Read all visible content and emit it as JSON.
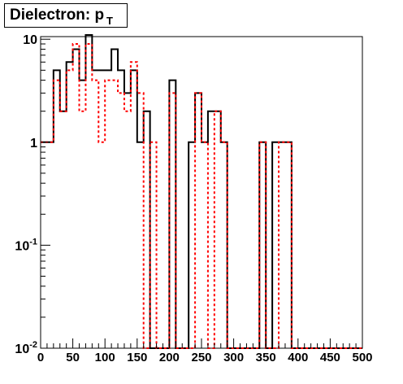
{
  "chart_data": {
    "type": "step-histogram",
    "title": "Dielectron: p",
    "title_subscript": "T",
    "x_ticks": [
      "0",
      "50",
      "100",
      "150",
      "200",
      "250",
      "300",
      "350",
      "400",
      "450",
      "500"
    ],
    "y_ticks": [
      {
        "base": "10",
        "exp": "-2",
        "value": 0.01
      },
      {
        "base": "10",
        "exp": "-1",
        "value": 0.1
      },
      {
        "base": "1",
        "exp": "",
        "value": 1
      },
      {
        "base": "10",
        "exp": "",
        "value": 10
      }
    ],
    "xlim": [
      0,
      500
    ],
    "ylim": [
      0.01,
      10.6
    ],
    "y_scale": "log",
    "bin_width": 10,
    "series": [
      {
        "color": "#000000",
        "style": "solid",
        "values": [
          1,
          1,
          5,
          2,
          6,
          8,
          4,
          11,
          5,
          5,
          5,
          8,
          5,
          3,
          5,
          1,
          2,
          0,
          0,
          0,
          4,
          0,
          0,
          1,
          3,
          1,
          2,
          2,
          1,
          0,
          0,
          0,
          0,
          0,
          1,
          0,
          1,
          1,
          1,
          0,
          0,
          0,
          0,
          0,
          0,
          0,
          0,
          0,
          0,
          0
        ]
      },
      {
        "color": "#ff0000",
        "style": "dashed",
        "values": [
          1,
          1,
          4,
          2,
          5,
          9,
          2,
          9,
          4,
          1,
          4,
          4,
          3,
          2,
          6,
          3,
          0,
          1,
          0,
          0,
          3,
          0,
          0,
          0,
          3,
          1,
          0,
          2,
          1,
          0,
          0,
          0,
          0,
          0,
          1,
          0,
          0,
          1,
          1,
          0,
          0,
          0,
          0,
          0,
          0,
          0,
          0,
          0,
          0,
          0
        ]
      }
    ]
  }
}
